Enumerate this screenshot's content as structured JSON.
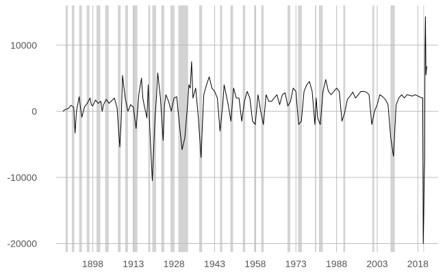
{
  "chart_data": {
    "type": "line",
    "title": "",
    "xlabel": "",
    "ylabel": "",
    "xlim": [
      1884.5,
      2025.5
    ],
    "ylim": [
      -21300,
      16000
    ],
    "xticks": [
      1898,
      1913,
      1928,
      1943,
      1958,
      1973,
      1988,
      2003,
      2018
    ],
    "yticks": [
      10000,
      0,
      -10000,
      -20000
    ],
    "x_tick_labels": [
      "1898",
      "1913",
      "1928",
      "1943",
      "1958",
      "1973",
      "1988",
      "2003",
      "2018"
    ],
    "y_tick_labels": [
      "10000",
      "0",
      "-10000",
      "-20000"
    ],
    "grid": true,
    "line_color": "#000000",
    "shade_color": "#d3d3d3",
    "recessions": [
      [
        1888.0,
        1888.8
      ],
      [
        1890.3,
        1891.2
      ],
      [
        1893.0,
        1894.0
      ],
      [
        1895.8,
        1896.8
      ],
      [
        1899.4,
        1900.8
      ],
      [
        1902.6,
        1903.9
      ],
      [
        1907.3,
        1908.3
      ],
      [
        1910.0,
        1911.0
      ],
      [
        1912.8,
        1914.5
      ],
      [
        1918.5,
        1919.2
      ],
      [
        1920.0,
        1921.4
      ],
      [
        1923.3,
        1924.4
      ],
      [
        1926.7,
        1927.8
      ],
      [
        1929.6,
        1933.2
      ],
      [
        1937.3,
        1938.4
      ],
      [
        1945.0,
        1945.8
      ],
      [
        1948.8,
        1949.8
      ],
      [
        1953.4,
        1954.3
      ],
      [
        1957.6,
        1958.3
      ],
      [
        1960.2,
        1961.1
      ],
      [
        1969.9,
        1970.9
      ],
      [
        1973.8,
        1975.2
      ],
      [
        1980.0,
        1980.5
      ],
      [
        1981.5,
        1982.9
      ],
      [
        1990.5,
        1991.2
      ],
      [
        2001.2,
        2001.9
      ],
      [
        2007.9,
        2009.5
      ],
      [
        2020.0,
        2020.3
      ]
    ],
    "series": [
      {
        "x": [
          1887,
          1888,
          1889,
          1890,
          1891,
          1891.5,
          1892,
          1893,
          1893.5,
          1894,
          1895,
          1896,
          1897,
          1897.5,
          1898,
          1899,
          1900,
          1901,
          1901.5,
          1902,
          1903,
          1904,
          1905,
          1906,
          1907,
          1908,
          1908.5,
          1909,
          1910,
          1911,
          1912,
          1913,
          1914,
          1914.5,
          1915,
          1916,
          1916.5,
          1917,
          1918,
          1918.5,
          1919,
          1920,
          1921,
          1921.5,
          1922,
          1923,
          1924,
          1924.5,
          1925,
          1926,
          1927,
          1928,
          1929,
          1930,
          1931,
          1932,
          1933,
          1933.5,
          1934,
          1934.5,
          1935,
          1936,
          1937,
          1938,
          1938.5,
          1939,
          1940,
          1941,
          1942,
          1943,
          1944,
          1945,
          1946,
          1946.5,
          1947,
          1948,
          1949,
          1950,
          1951,
          1952,
          1953,
          1954,
          1955,
          1956,
          1957,
          1958,
          1959,
          1960,
          1961,
          1962,
          1963,
          1964,
          1965,
          1966,
          1967,
          1968,
          1969,
          1970,
          1971,
          1972,
          1973,
          1974,
          1975,
          1976,
          1977,
          1978,
          1979,
          1980,
          1980.5,
          1981,
          1982,
          1983,
          1984,
          1985,
          1986,
          1987,
          1988,
          1989,
          1990,
          1991,
          1992,
          1993,
          1994,
          1995,
          1996,
          1997,
          1998,
          1999,
          2000,
          2001,
          2002,
          2003,
          2004,
          2005,
          2006,
          2007,
          2008,
          2009,
          2010,
          2011,
          2012,
          2013,
          2014,
          2015,
          2016,
          2017,
          2018,
          2019,
          2019.8,
          2020.0,
          2020.2,
          2020.35,
          2020.5,
          2020.65,
          2020.8,
          2021.0,
          2021.2,
          2021.4
        ],
        "values": [
          0,
          300,
          400,
          900,
          600,
          -3300,
          0,
          2200,
          500,
          -900,
          700,
          1200,
          2000,
          1000,
          800,
          1700,
          1200,
          1500,
          0,
          1000,
          1800,
          1200,
          1600,
          2000,
          500,
          -5400,
          -1500,
          5400,
          2000,
          0,
          1000,
          600,
          -2600,
          -300,
          2500,
          5000,
          2000,
          900,
          -1000,
          4000,
          -2000,
          -10500,
          -1000,
          2000,
          5800,
          2000,
          -4400,
          1000,
          2500,
          1500,
          0,
          2000,
          2200,
          -2000,
          -5800,
          -4000,
          1000,
          4000,
          3500,
          7500,
          2000,
          3500,
          -1000,
          -7000,
          -2000,
          2500,
          4000,
          5200,
          3500,
          3000,
          2000,
          -3000,
          1000,
          4000,
          3000,
          1000,
          -1500,
          3500,
          2000,
          2000,
          -1500,
          1500,
          3000,
          2000,
          -1500,
          -2000,
          2500,
          0,
          -2000,
          2500,
          1500,
          1500,
          2000,
          2500,
          1000,
          2500,
          2800,
          800,
          1500,
          3500,
          3000,
          -2000,
          -1500,
          3000,
          4000,
          4500,
          3000,
          -2000,
          2000,
          -1000,
          -2000,
          3000,
          4800,
          3000,
          2500,
          3000,
          3500,
          3000,
          -1500,
          -200,
          1800,
          2300,
          2900,
          2000,
          2500,
          3000,
          3000,
          2900,
          2500,
          -2000,
          0,
          1000,
          2500,
          2200,
          1800,
          1000,
          -4000,
          -6800,
          1000,
          2000,
          2500,
          2000,
          2500,
          2400,
          2300,
          2500,
          2300,
          2100,
          2000,
          -20000,
          -15500,
          -10000,
          -8000,
          9800,
          14300,
          5500,
          6500,
          6800
        ]
      }
    ]
  }
}
